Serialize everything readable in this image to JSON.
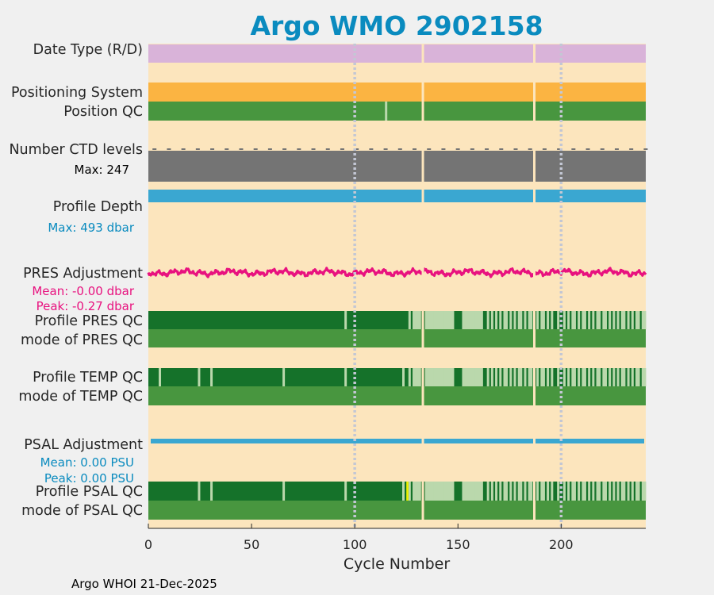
{
  "colors": {
    "title": "#0a8bbf",
    "background": "#fce5bd",
    "date_type": "#d9b3d9",
    "positioning": "#fbb442",
    "qc_good": "#48963f",
    "qc_dark": "#15722a",
    "qc_light": "#bad8ac",
    "ctd": "#747474",
    "depth": "#3aa7d1",
    "pres_adj": "#e8127f",
    "psal_adj": "#3aa7d1",
    "psal_flag": "#f2f200",
    "gap": "#fce5bd",
    "grid": "#c3c7d4"
  },
  "chart_data": {
    "type": "timeline",
    "title": "Argo WMO 2902158",
    "xlabel": "Cycle Number",
    "xlim": [
      0,
      241
    ],
    "xticks": [
      0,
      50,
      100,
      150,
      200
    ],
    "grid_dotted_x": [
      100,
      200
    ],
    "gap_cycles": [
      133,
      187
    ],
    "rows": [
      {
        "label": "Date Type (R/D)",
        "kind": "solid",
        "color_key": "date_type"
      },
      {
        "label": "Positioning System",
        "kind": "solid",
        "color_key": "positioning"
      },
      {
        "label": "Position QC",
        "kind": "solid",
        "color_key": "qc_good",
        "flag_cycles": [
          115
        ]
      },
      {
        "label": "Number CTD levels",
        "sublabel": "Max: 247",
        "kind": "solid",
        "color_key": "ctd"
      },
      {
        "label": "Profile Depth",
        "sublabel": "Max:  493 dbar",
        "kind": "solid",
        "color_key": "depth"
      },
      {
        "label": "PRES Adjustment",
        "sublabels": [
          "Mean: -0.00 dbar",
          "Peak: -0.27 dbar"
        ],
        "kind": "line",
        "color_key": "pres_adj",
        "mean": -0.0,
        "peak": -0.27
      },
      {
        "label": "Profile PRES QC",
        "kind": "profile_qc",
        "light_cycles": [
          95,
          126,
          128,
          129,
          130,
          131,
          134,
          135,
          136,
          137,
          138,
          139,
          140,
          141,
          142,
          143,
          144,
          145,
          146,
          147,
          152,
          153,
          154,
          155,
          156,
          157,
          158,
          159,
          160,
          161,
          164,
          166,
          168,
          170,
          172,
          173,
          175,
          177,
          179,
          180,
          182,
          184,
          185,
          188,
          190,
          191,
          193,
          195,
          198,
          201,
          203,
          205,
          206,
          208,
          210,
          211,
          213,
          215,
          217,
          218,
          220,
          221,
          223,
          225,
          227,
          229,
          230,
          232,
          234,
          236,
          237,
          239,
          240
        ]
      },
      {
        "label": "mode of PRES QC",
        "kind": "solid",
        "color_key": "qc_good"
      },
      {
        "label": "Profile TEMP QC",
        "kind": "profile_qc",
        "light_cycles": [
          5,
          24,
          30,
          65,
          95,
          123,
          126,
          128,
          129,
          130,
          131,
          134,
          135,
          136,
          137,
          138,
          139,
          140,
          141,
          142,
          143,
          144,
          145,
          146,
          147,
          152,
          153,
          154,
          155,
          156,
          157,
          158,
          159,
          160,
          161,
          164,
          166,
          168,
          170,
          172,
          173,
          175,
          177,
          179,
          180,
          182,
          184,
          185,
          188,
          190,
          191,
          193,
          195,
          198,
          201,
          203,
          205,
          206,
          208,
          210,
          211,
          213,
          215,
          217,
          218,
          220,
          221,
          223,
          225,
          227,
          229,
          230,
          232,
          234,
          236,
          237,
          239,
          240
        ]
      },
      {
        "label": "mode of TEMP QC",
        "kind": "solid",
        "color_key": "qc_good"
      },
      {
        "label": "PSAL Adjustment",
        "sublabels": [
          "Mean: 0.00 PSU",
          "Peak: 0.00 PSU"
        ],
        "kind": "thinline",
        "color_key": "psal_adj",
        "mean": 0.0,
        "peak": 0.0
      },
      {
        "label": "Profile PSAL QC",
        "kind": "profile_qc",
        "flag_cycles": [
          125
        ],
        "light_cycles": [
          24,
          30,
          65,
          95,
          123,
          126,
          128,
          129,
          130,
          131,
          134,
          135,
          136,
          137,
          138,
          139,
          140,
          141,
          142,
          143,
          144,
          145,
          146,
          147,
          152,
          153,
          154,
          155,
          156,
          157,
          158,
          159,
          160,
          161,
          164,
          166,
          168,
          170,
          172,
          173,
          175,
          177,
          179,
          180,
          182,
          184,
          185,
          188,
          190,
          191,
          193,
          195,
          198,
          201,
          203,
          205,
          206,
          208,
          210,
          211,
          213,
          215,
          217,
          218,
          220,
          221,
          223,
          225,
          227,
          229,
          230,
          232,
          234,
          236,
          237,
          239,
          240
        ]
      },
      {
        "label": "mode of PSAL QC",
        "kind": "solid",
        "color_key": "qc_good"
      }
    ]
  },
  "footer": "Argo WHOI 21-Dec-2025"
}
